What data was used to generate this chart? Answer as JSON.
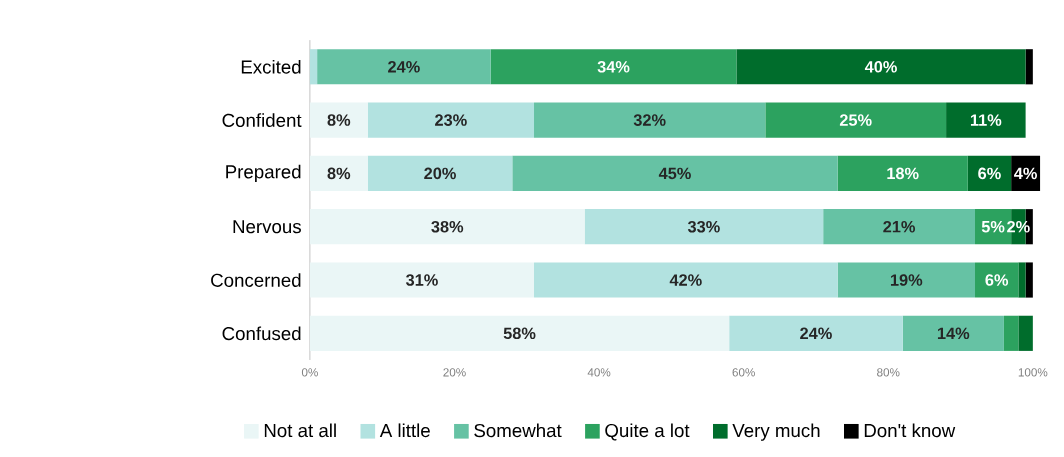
{
  "chart_data": {
    "type": "bar",
    "orientation": "horizontal",
    "stacked": true,
    "legend": "bottom",
    "categories": [
      "Excited",
      "Confident",
      "Prepared",
      "Nervous",
      "Concerned",
      "Confused"
    ],
    "xlim": [
      0,
      101
    ],
    "xticks": [
      {
        "value": 0,
        "label": "0%"
      },
      {
        "value": 20,
        "label": "20%"
      },
      {
        "value": 40,
        "label": "40%"
      },
      {
        "value": 60,
        "label": "60%"
      },
      {
        "value": 80,
        "label": "80%"
      },
      {
        "value": 100,
        "label": "100%"
      }
    ],
    "series": [
      {
        "name": "Not at all",
        "color": "#eaf6f6",
        "values": [
          0,
          8,
          8,
          38,
          31,
          58
        ],
        "value_labels": [
          null,
          "8%",
          "8%",
          "38%",
          "31%",
          "58%"
        ]
      },
      {
        "name": "A little",
        "color": "#b2e2e0",
        "values": [
          1,
          23,
          20,
          33,
          42,
          24
        ],
        "value_labels": [
          null,
          "23%",
          "20%",
          "33%",
          "42%",
          "24%"
        ]
      },
      {
        "name": "Somewhat",
        "color": "#66c2a4",
        "values": [
          24,
          32,
          45,
          21,
          19,
          14
        ],
        "value_labels": [
          "24%",
          "32%",
          "45%",
          "21%",
          "19%",
          "14%"
        ]
      },
      {
        "name": "Quite a lot",
        "color": "#2ca25f",
        "values": [
          34,
          25,
          18,
          5,
          6,
          2
        ],
        "value_labels": [
          "34%",
          "25%",
          "18%",
          "5%",
          "6%",
          null
        ]
      },
      {
        "name": "Very much",
        "color": "#006d2c",
        "values": [
          40,
          11,
          6,
          2,
          1,
          2
        ],
        "value_labels": [
          "40%",
          "11%",
          "6%",
          "2%",
          null,
          null
        ]
      },
      {
        "name": "Don't know",
        "color": "#000000",
        "values": [
          1,
          0,
          4,
          1,
          1,
          0
        ],
        "value_labels": [
          null,
          null,
          "4%",
          null,
          null,
          null
        ]
      }
    ]
  }
}
